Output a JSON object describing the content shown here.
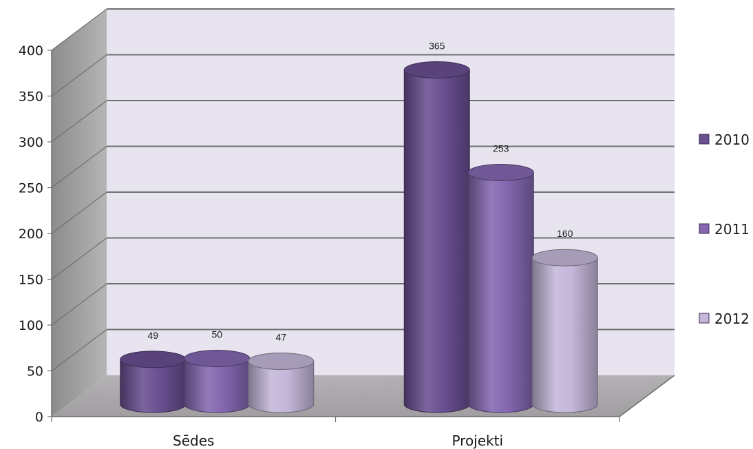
{
  "chart_data": {
    "type": "bar",
    "style": "3d-cylinder",
    "categories": [
      "Sēdes",
      "Projekti"
    ],
    "series": [
      {
        "name": "2010",
        "values": [
          49,
          365
        ],
        "color": "#6a4f91"
      },
      {
        "name": "2011",
        "values": [
          50,
          253
        ],
        "color": "#8467b0"
      },
      {
        "name": "2012",
        "values": [
          47,
          160
        ],
        "color": "#c4b7d9"
      }
    ],
    "y_ticks": [
      "0",
      "50",
      "100",
      "150",
      "200",
      "250",
      "300",
      "350",
      "400"
    ],
    "ylim": [
      0,
      400
    ],
    "grid": true,
    "legend_position": "right",
    "title": "",
    "xlabel": "",
    "ylabel": ""
  }
}
